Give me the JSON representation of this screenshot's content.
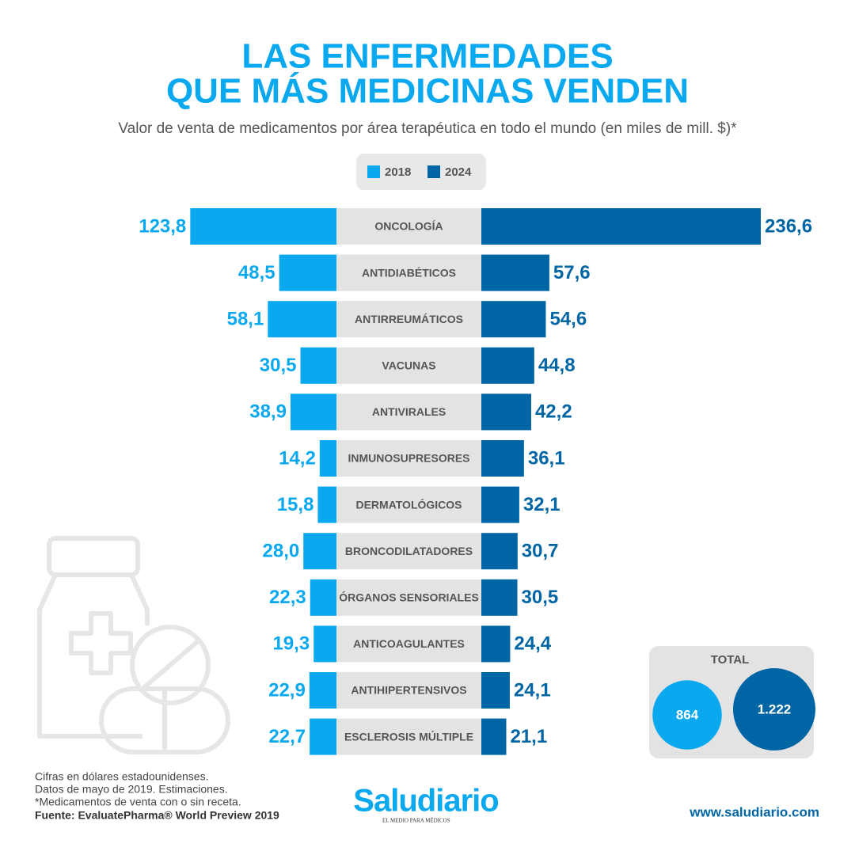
{
  "chart_data": {
    "type": "butterfly",
    "title": [
      "LAS ENFERMEDADES",
      "QUE MÁS MEDICINAS VENDEN"
    ],
    "subtitle": "Valor de venta de medicamentos por área terapéutica en todo el mundo (en miles de mill. $)*",
    "categories": [
      "ONCOLOGÍA",
      "ANTIDIABÉTICOS",
      "ANTIRREUMÁTICOS",
      "VACUNAS",
      "ANTIVIRALES",
      "INMUNOSUPRESORES",
      "DERMATOLÓGICOS",
      "BRONCODILATADORES",
      "ÓRGANOS SENSORIALES",
      "ANTICOAGULANTES",
      "ANTIHIPERTENSIVOS",
      "ESCLEROSIS MÚLTIPLE"
    ],
    "series": [
      {
        "name": "2018",
        "color": "#0aa8ef",
        "values": [
          123.8,
          48.5,
          58.1,
          30.5,
          38.9,
          14.2,
          15.8,
          28.0,
          22.3,
          19.3,
          22.9,
          22.7
        ],
        "value_labels": [
          "123,8",
          "48,5",
          "58,1",
          "30,5",
          "38,9",
          "14,2",
          "15,8",
          "28,0",
          "22,3",
          "19,3",
          "22,9",
          "22,7"
        ]
      },
      {
        "name": "2024",
        "color": "#0065a4",
        "values": [
          236.6,
          57.6,
          54.6,
          44.8,
          42.2,
          36.1,
          32.1,
          30.7,
          30.5,
          24.4,
          24.1,
          21.1
        ],
        "value_labels": [
          "236,6",
          "57,6",
          "54,6",
          "44,8",
          "42,2",
          "36,1",
          "32,1",
          "30,7",
          "30,5",
          "24,4",
          "24,1",
          "21,1"
        ]
      }
    ],
    "total": {
      "label": "TOTAL",
      "values": [
        864,
        1222
      ],
      "value_labels": [
        "864",
        "1.222"
      ]
    },
    "notes": [
      "Cifras en dólares estadounidenses.",
      "Datos de mayo de 2019. Estimaciones.",
      "*Medicamentos de venta con o sin receta."
    ],
    "source": "Fuente: EvaluatePharma® World Preview 2019",
    "brand": {
      "name": "Saludiario",
      "tagline": "EL MEDIO PARA MÉDICOS",
      "url": "www.saludiario.com"
    }
  }
}
